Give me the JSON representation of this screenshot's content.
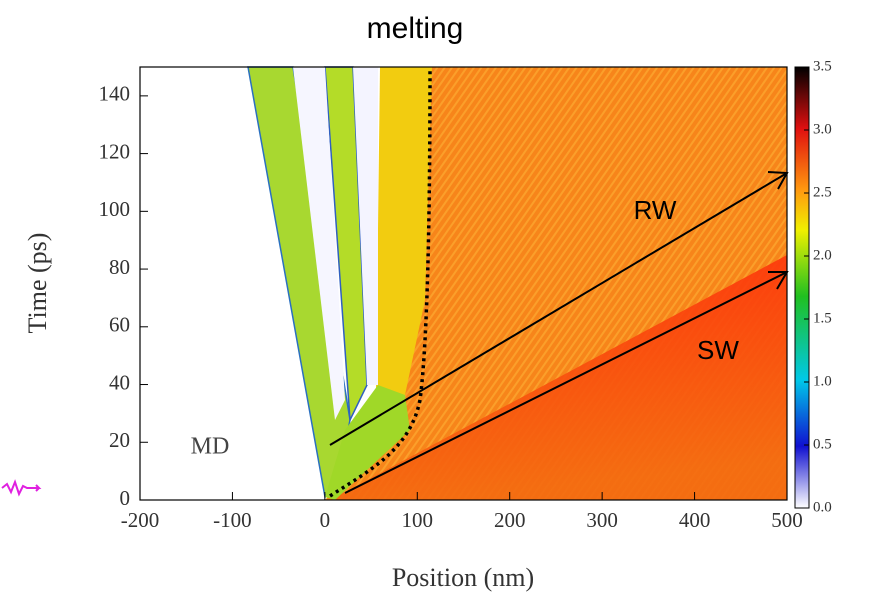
{
  "chart_data": {
    "type": "heatmap",
    "title": "melting",
    "xlabel": "Position (nm)",
    "ylabel": "Time (ps)",
    "xlim": [
      -200,
      500
    ],
    "xticks": [
      -200,
      -100,
      0,
      100,
      200,
      300,
      400,
      500
    ],
    "ylim": [
      0,
      150
    ],
    "yticks": [
      0,
      20,
      40,
      60,
      80,
      100,
      120,
      140
    ],
    "colorbar_lim": [
      0,
      3.5
    ],
    "colorbar_ticks": [
      {
        "value": 0,
        "label": "0.0"
      },
      0.5,
      {
        "value": 1,
        "label": "1.0"
      },
      1.5,
      {
        "value": 2,
        "label": "2.0"
      },
      2.5,
      {
        "value": 3,
        "label": "3.0"
      },
      3.5
    ],
    "annotations": [
      "RW",
      "SW",
      "MD"
    ]
  }
}
